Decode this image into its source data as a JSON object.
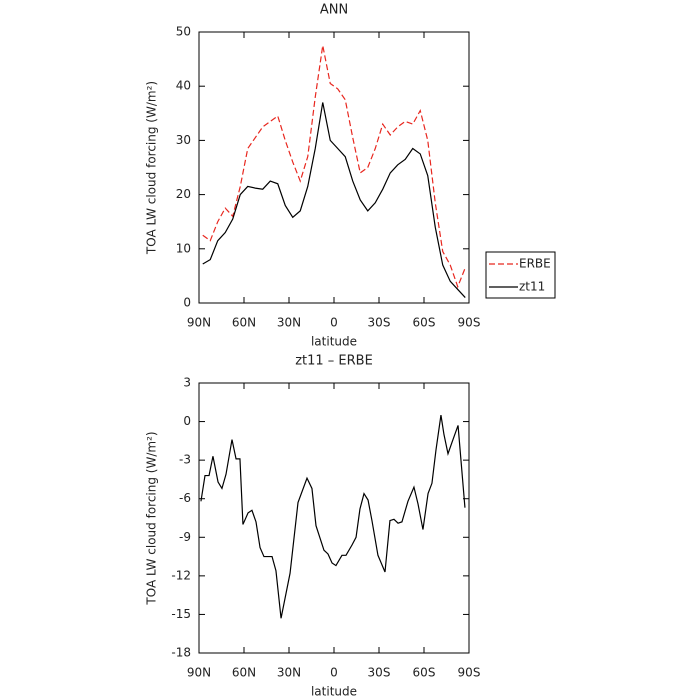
{
  "chart_data": [
    {
      "type": "line",
      "title": "ANN",
      "x_label": "latitude",
      "y_label": "TOA LW cloud forcing (W/m²)",
      "x": [
        87.5,
        82.5,
        77.5,
        72.5,
        67.5,
        62.5,
        57.5,
        52.5,
        47.5,
        42.5,
        37.5,
        32.5,
        27.5,
        22.5,
        17.5,
        12.5,
        7.5,
        2.5,
        -2.5,
        -7.5,
        -12.5,
        -17.5,
        -22.5,
        -27.5,
        -32.5,
        -37.5,
        -42.5,
        -47.5,
        -52.5,
        -57.5,
        -62.5,
        -67.5,
        -72.5,
        -77.5,
        -82.5,
        -87.5
      ],
      "series": [
        {
          "name": "ERBE",
          "color": "#e8271f",
          "linestyle": "dashed",
          "values": [
            12.5,
            11.5,
            15,
            17.5,
            16,
            21.5,
            28.5,
            30.5,
            32.5,
            33.5,
            34.5,
            30,
            26,
            22.5,
            27,
            38,
            47.5,
            40.5,
            39.5,
            37.5,
            30.5,
            24,
            25,
            28.5,
            33,
            31,
            32.5,
            33.5,
            33,
            35.5,
            30,
            18.5,
            9.5,
            7,
            3,
            6.5
          ]
        },
        {
          "name": "zt11",
          "color": "#000000",
          "linestyle": "solid",
          "values": [
            7.2,
            8,
            11.5,
            13,
            15.5,
            20,
            21.5,
            21.2,
            21,
            22.5,
            22,
            18,
            15.8,
            17,
            21.5,
            28.5,
            37,
            30,
            28.5,
            27,
            22.5,
            19,
            17,
            18.5,
            21,
            24,
            25.5,
            26.5,
            28.5,
            27.5,
            23.5,
            14,
            7,
            4,
            2.5,
            1
          ]
        }
      ],
      "xlim": [
        90,
        -90
      ],
      "xticks": [
        {
          "value": 90,
          "label": "90N"
        },
        {
          "value": 60,
          "label": "60N"
        },
        {
          "value": 30,
          "label": "30N"
        },
        0,
        {
          "value": -30,
          "label": "30S"
        },
        {
          "value": -60,
          "label": "60S"
        },
        {
          "value": -90,
          "label": "90S"
        }
      ],
      "ylim": [
        0,
        50
      ],
      "yticks": [
        0,
        10,
        20,
        30,
        40,
        50
      ],
      "legend": "right"
    },
    {
      "type": "line",
      "title": "zt11 – ERBE",
      "x_label": "latitude",
      "y_label": "TOA LW cloud forcing (W/m²)",
      "x": [
        88.7,
        86,
        83.3,
        80.7,
        77.3,
        74.7,
        72,
        68,
        65.3,
        62.7,
        60.7,
        57.3,
        54.7,
        52,
        49.3,
        46.7,
        41.3,
        38.7,
        35.3,
        29.3,
        24,
        18,
        14.7,
        12,
        6.7,
        4,
        1.3,
        -1.3,
        -5.3,
        -8,
        -12,
        -14.7,
        -17.3,
        -20,
        -22.7,
        -25.3,
        -29.3,
        -34,
        -37.3,
        -40,
        -42.7,
        -45.3,
        -49.3,
        -53.3,
        -56,
        -59.3,
        -62.7,
        -65.3,
        -68,
        -71.3,
        -73.3,
        -76,
        -78.7,
        -82.7,
        -87.3
      ],
      "series": [
        {
          "color": "#000000",
          "linestyle": "solid",
          "values": [
            -6.2,
            -4.2,
            -4.2,
            -2.7,
            -4.7,
            -5.2,
            -4.1,
            -1.4,
            -2.9,
            -2.9,
            -8,
            -7.1,
            -6.9,
            -7.8,
            -9.8,
            -10.5,
            -10.5,
            -11.6,
            -15.3,
            -11.8,
            -6.3,
            -4.4,
            -5.2,
            -8.1,
            -10,
            -10.3,
            -11,
            -11.2,
            -10.4,
            -10.4,
            -9.6,
            -9,
            -6.8,
            -5.6,
            -6.1,
            -7.7,
            -10.4,
            -11.7,
            -7.7,
            -7.6,
            -7.9,
            -7.8,
            -6.2,
            -5.1,
            -6.4,
            -8.4,
            -5.6,
            -4.8,
            -2.2,
            0.5,
            -1,
            -2.5,
            -1.6,
            -0.3,
            -6.7
          ]
        }
      ],
      "xlim": [
        90,
        -90
      ],
      "xticks": [
        {
          "value": 90,
          "label": "90N"
        },
        {
          "value": 60,
          "label": "60N"
        },
        {
          "value": 30,
          "label": "30N"
        },
        0,
        {
          "value": -30,
          "label": "30S"
        },
        {
          "value": -60,
          "label": "60S"
        },
        {
          "value": -90,
          "label": "90S"
        }
      ],
      "ylim": [
        -18,
        3
      ],
      "yticks": [
        -18,
        -15,
        -12,
        -9,
        -6,
        -3,
        0,
        3
      ]
    }
  ]
}
